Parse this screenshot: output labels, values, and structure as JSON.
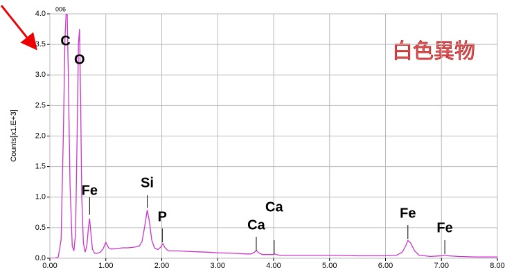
{
  "chart_data": {
    "type": "line",
    "ylabel": "Counts[x1.E+3]",
    "corner_text": "006",
    "annotation": "白色異物",
    "x": [
      0.0,
      0.1,
      0.15,
      0.2,
      0.24,
      0.27,
      0.29,
      0.31,
      0.33,
      0.36,
      0.4,
      0.43,
      0.46,
      0.49,
      0.51,
      0.53,
      0.55,
      0.57,
      0.6,
      0.63,
      0.66,
      0.69,
      0.71,
      0.73,
      0.76,
      0.8,
      0.85,
      0.9,
      0.95,
      1.0,
      1.05,
      1.1,
      1.2,
      1.3,
      1.4,
      1.5,
      1.6,
      1.65,
      1.7,
      1.74,
      1.78,
      1.82,
      1.87,
      1.93,
      1.98,
      2.02,
      2.06,
      2.12,
      2.3,
      2.5,
      2.8,
      3.0,
      3.3,
      3.5,
      3.6,
      3.66,
      3.69,
      3.73,
      3.8,
      4.0,
      4.01,
      4.1,
      4.5,
      5.0,
      5.5,
      6.0,
      6.2,
      6.3,
      6.36,
      6.4,
      6.45,
      6.52,
      6.6,
      6.8,
      7.0,
      7.06,
      7.12,
      7.3,
      7.6,
      8.0
    ],
    "series": [
      {
        "color": "#cc33cc",
        "values": [
          0.0,
          0.0,
          0.02,
          0.3,
          2.0,
          3.6,
          4.0,
          4.0,
          3.0,
          1.2,
          0.2,
          0.12,
          0.4,
          2.2,
          3.5,
          3.75,
          2.6,
          1.0,
          0.25,
          0.1,
          0.2,
          0.5,
          0.65,
          0.45,
          0.15,
          0.08,
          0.08,
          0.1,
          0.15,
          0.26,
          0.17,
          0.15,
          0.16,
          0.17,
          0.17,
          0.18,
          0.2,
          0.28,
          0.55,
          0.79,
          0.6,
          0.3,
          0.17,
          0.14,
          0.18,
          0.24,
          0.17,
          0.12,
          0.12,
          0.11,
          0.1,
          0.09,
          0.08,
          0.07,
          0.07,
          0.1,
          0.13,
          0.09,
          0.06,
          0.06,
          0.07,
          0.05,
          0.05,
          0.05,
          0.04,
          0.04,
          0.05,
          0.1,
          0.2,
          0.29,
          0.25,
          0.12,
          0.05,
          0.03,
          0.04,
          0.05,
          0.04,
          0.03,
          0.02,
          0.02
        ]
      }
    ],
    "peaks": [
      {
        "label": "C",
        "x": 0.28
      },
      {
        "label": "O",
        "x": 0.53
      },
      {
        "label": "Fe",
        "x": 0.71
      },
      {
        "label": "Si",
        "x": 1.74
      },
      {
        "label": "P",
        "x": 2.01
      },
      {
        "label": "Ca",
        "x": 3.69
      },
      {
        "label": "Ca",
        "x": 4.01
      },
      {
        "label": "Fe",
        "x": 6.4
      },
      {
        "label": "Fe",
        "x": 7.06
      }
    ],
    "xlim": [
      0,
      8
    ],
    "ylim": [
      0,
      4
    ],
    "xticks": [
      {
        "value": 0,
        "label": "0.00"
      },
      {
        "value": 1,
        "label": "1.00"
      },
      {
        "value": 2,
        "label": "2.00"
      },
      {
        "value": 3,
        "label": "3.00"
      },
      {
        "value": 4,
        "label": "4.00"
      },
      {
        "value": 5,
        "label": "5.00"
      },
      {
        "value": 6,
        "label": "6.00"
      },
      {
        "value": 7,
        "label": "7.00"
      },
      {
        "value": 8,
        "label": "8.00"
      }
    ],
    "yticks": [
      {
        "value": 0,
        "label": "0.0"
      },
      0.5,
      {
        "value": 1,
        "label": "1.0"
      },
      1.5,
      {
        "value": 2,
        "label": "2.0"
      },
      2.5,
      {
        "value": 3,
        "label": "3.0"
      },
      3.5,
      {
        "value": 4,
        "label": "4.0"
      }
    ],
    "grid": true
  }
}
